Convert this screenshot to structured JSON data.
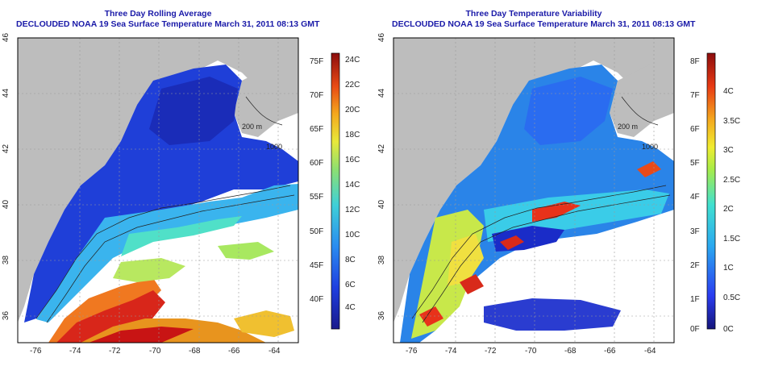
{
  "panels": [
    {
      "title": "Three Day Rolling Average",
      "subtitle": "DECLOUDED NOAA 19 Sea Surface Temperature March 31, 2011 08:13 GMT",
      "x_ticks": [
        "-76",
        "-74",
        "-72",
        "-70",
        "-68",
        "-66",
        "-64"
      ],
      "y_ticks": [
        "36",
        "38",
        "40",
        "42",
        "44",
        "46"
      ],
      "colorbar_left_labels": [
        "75F",
        "70F",
        "65F",
        "60F",
        "55F",
        "50F",
        "45F",
        "40F"
      ],
      "colorbar_right_labels": [
        "24C",
        "22C",
        "20C",
        "18C",
        "16C",
        "14C",
        "12C",
        "10C",
        "8C",
        "6C",
        "4C"
      ],
      "contour_labels": [
        "200 m",
        "1000"
      ]
    },
    {
      "title": "Three Day Temperature Variability",
      "subtitle": "DECLOUDED NOAA 19 Sea Surface Temperature March 31, 2011 08:13 GMT",
      "x_ticks": [
        "-76",
        "-74",
        "-72",
        "-70",
        "-68",
        "-66",
        "-64"
      ],
      "y_ticks": [
        "36",
        "38",
        "40",
        "42",
        "44",
        "46"
      ],
      "colorbar_left_labels": [
        "8F",
        "7F",
        "6F",
        "5F",
        "4F",
        "3F",
        "2F",
        "1F",
        "0F"
      ],
      "colorbar_right_labels": [
        "4C",
        "3.5C",
        "3C",
        "2.5C",
        "2C",
        "1.5C",
        "1C",
        "0.5C",
        "0C"
      ],
      "contour_labels": [
        "200 m",
        "1000"
      ]
    }
  ],
  "colors": {
    "land": "#bdbdbd",
    "no_data": "#ffffff",
    "title": "#1a1aa8",
    "grid": "#9a9a9a"
  }
}
